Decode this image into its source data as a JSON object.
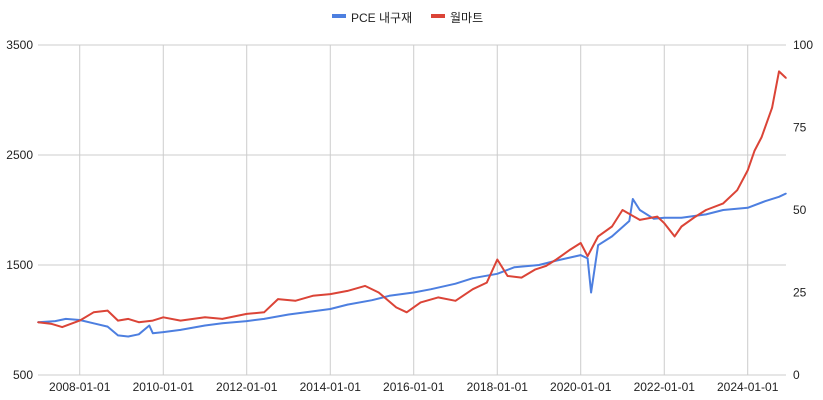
{
  "chart_data": {
    "type": "line",
    "x_ticks": [
      "2008-01-01",
      "2010-01-01",
      "2012-01-01",
      "2014-01-01",
      "2016-01-01",
      "2018-01-01",
      "2020-01-01",
      "2022-01-01",
      "2024-01-01"
    ],
    "x_start": "2007-01-01",
    "x_end": "2024-12-01",
    "y_left": {
      "min": 500,
      "max": 3500,
      "ticks": [
        "3500",
        "2500",
        "1500",
        "500"
      ]
    },
    "y_right": {
      "min": 0,
      "max": 100,
      "ticks": [
        "100",
        "75",
        "50",
        "25",
        "0"
      ]
    },
    "grid": true,
    "legend_position": "top-center",
    "series": [
      {
        "name": "PCE 내구재",
        "color": "#4d7fe0",
        "axis": "left",
        "points": [
          [
            "2007-01-01",
            980
          ],
          [
            "2007-06-01",
            990
          ],
          [
            "2007-09-01",
            1010
          ],
          [
            "2008-01-01",
            1000
          ],
          [
            "2008-05-01",
            970
          ],
          [
            "2008-09-01",
            940
          ],
          [
            "2008-12-01",
            860
          ],
          [
            "2009-03-01",
            850
          ],
          [
            "2009-06-01",
            870
          ],
          [
            "2009-09-01",
            950
          ],
          [
            "2009-10-01",
            880
          ],
          [
            "2010-01-01",
            890
          ],
          [
            "2010-06-01",
            910
          ],
          [
            "2011-01-01",
            950
          ],
          [
            "2011-06-01",
            970
          ],
          [
            "2012-01-01",
            990
          ],
          [
            "2012-06-01",
            1010
          ],
          [
            "2013-01-01",
            1050
          ],
          [
            "2013-06-01",
            1070
          ],
          [
            "2014-01-01",
            1100
          ],
          [
            "2014-06-01",
            1140
          ],
          [
            "2015-01-01",
            1180
          ],
          [
            "2015-06-01",
            1220
          ],
          [
            "2016-01-01",
            1250
          ],
          [
            "2016-06-01",
            1280
          ],
          [
            "2017-01-01",
            1330
          ],
          [
            "2017-06-01",
            1380
          ],
          [
            "2018-01-01",
            1420
          ],
          [
            "2018-06-01",
            1480
          ],
          [
            "2019-01-01",
            1500
          ],
          [
            "2019-06-01",
            1540
          ],
          [
            "2020-01-01",
            1590
          ],
          [
            "2020-03-01",
            1560
          ],
          [
            "2020-04-01",
            1250
          ],
          [
            "2020-06-01",
            1680
          ],
          [
            "2020-10-01",
            1760
          ],
          [
            "2021-03-01",
            1900
          ],
          [
            "2021-04-01",
            2100
          ],
          [
            "2021-06-01",
            2000
          ],
          [
            "2021-10-01",
            1920
          ],
          [
            "2022-01-01",
            1930
          ],
          [
            "2022-06-01",
            1930
          ],
          [
            "2023-01-01",
            1960
          ],
          [
            "2023-06-01",
            2000
          ],
          [
            "2024-01-01",
            2020
          ],
          [
            "2024-06-01",
            2080
          ],
          [
            "2024-10-01",
            2120
          ],
          [
            "2024-12-01",
            2150
          ]
        ]
      },
      {
        "name": "월마트",
        "color": "#db4437",
        "axis": "right",
        "points": [
          [
            "2007-01-01",
            16
          ],
          [
            "2007-05-01",
            15.5
          ],
          [
            "2007-08-01",
            14.5
          ],
          [
            "2008-01-01",
            16.5
          ],
          [
            "2008-05-01",
            19
          ],
          [
            "2008-09-01",
            19.5
          ],
          [
            "2008-12-01",
            16.5
          ],
          [
            "2009-03-01",
            17
          ],
          [
            "2009-06-01",
            16
          ],
          [
            "2009-10-01",
            16.5
          ],
          [
            "2010-01-01",
            17.5
          ],
          [
            "2010-06-01",
            16.5
          ],
          [
            "2011-01-01",
            17.5
          ],
          [
            "2011-06-01",
            17
          ],
          [
            "2012-01-01",
            18.5
          ],
          [
            "2012-06-01",
            19
          ],
          [
            "2012-10-01",
            23
          ],
          [
            "2013-03-01",
            22.5
          ],
          [
            "2013-08-01",
            24
          ],
          [
            "2014-01-01",
            24.5
          ],
          [
            "2014-06-01",
            25.5
          ],
          [
            "2014-11-01",
            27
          ],
          [
            "2015-03-01",
            25
          ],
          [
            "2015-08-01",
            20.5
          ],
          [
            "2015-11-01",
            19
          ],
          [
            "2016-03-01",
            22
          ],
          [
            "2016-08-01",
            23.5
          ],
          [
            "2017-01-01",
            22.5
          ],
          [
            "2017-06-01",
            26
          ],
          [
            "2017-10-01",
            28
          ],
          [
            "2018-01-01",
            35
          ],
          [
            "2018-04-01",
            30
          ],
          [
            "2018-08-01",
            29.5
          ],
          [
            "2018-12-01",
            32
          ],
          [
            "2019-03-01",
            33
          ],
          [
            "2019-06-01",
            35
          ],
          [
            "2019-10-01",
            38
          ],
          [
            "2020-01-01",
            40
          ],
          [
            "2020-03-01",
            36
          ],
          [
            "2020-06-01",
            42
          ],
          [
            "2020-10-01",
            45
          ],
          [
            "2021-01-01",
            50
          ],
          [
            "2021-06-01",
            47
          ],
          [
            "2021-11-01",
            48
          ],
          [
            "2022-01-01",
            46
          ],
          [
            "2022-04-01",
            42
          ],
          [
            "2022-06-01",
            45
          ],
          [
            "2022-10-01",
            48
          ],
          [
            "2023-01-01",
            50
          ],
          [
            "2023-06-01",
            52
          ],
          [
            "2023-10-01",
            56
          ],
          [
            "2024-01-01",
            62
          ],
          [
            "2024-03-01",
            68
          ],
          [
            "2024-05-01",
            72
          ],
          [
            "2024-08-01",
            81
          ],
          [
            "2024-10-01",
            92
          ],
          [
            "2024-12-01",
            90
          ]
        ]
      }
    ]
  }
}
